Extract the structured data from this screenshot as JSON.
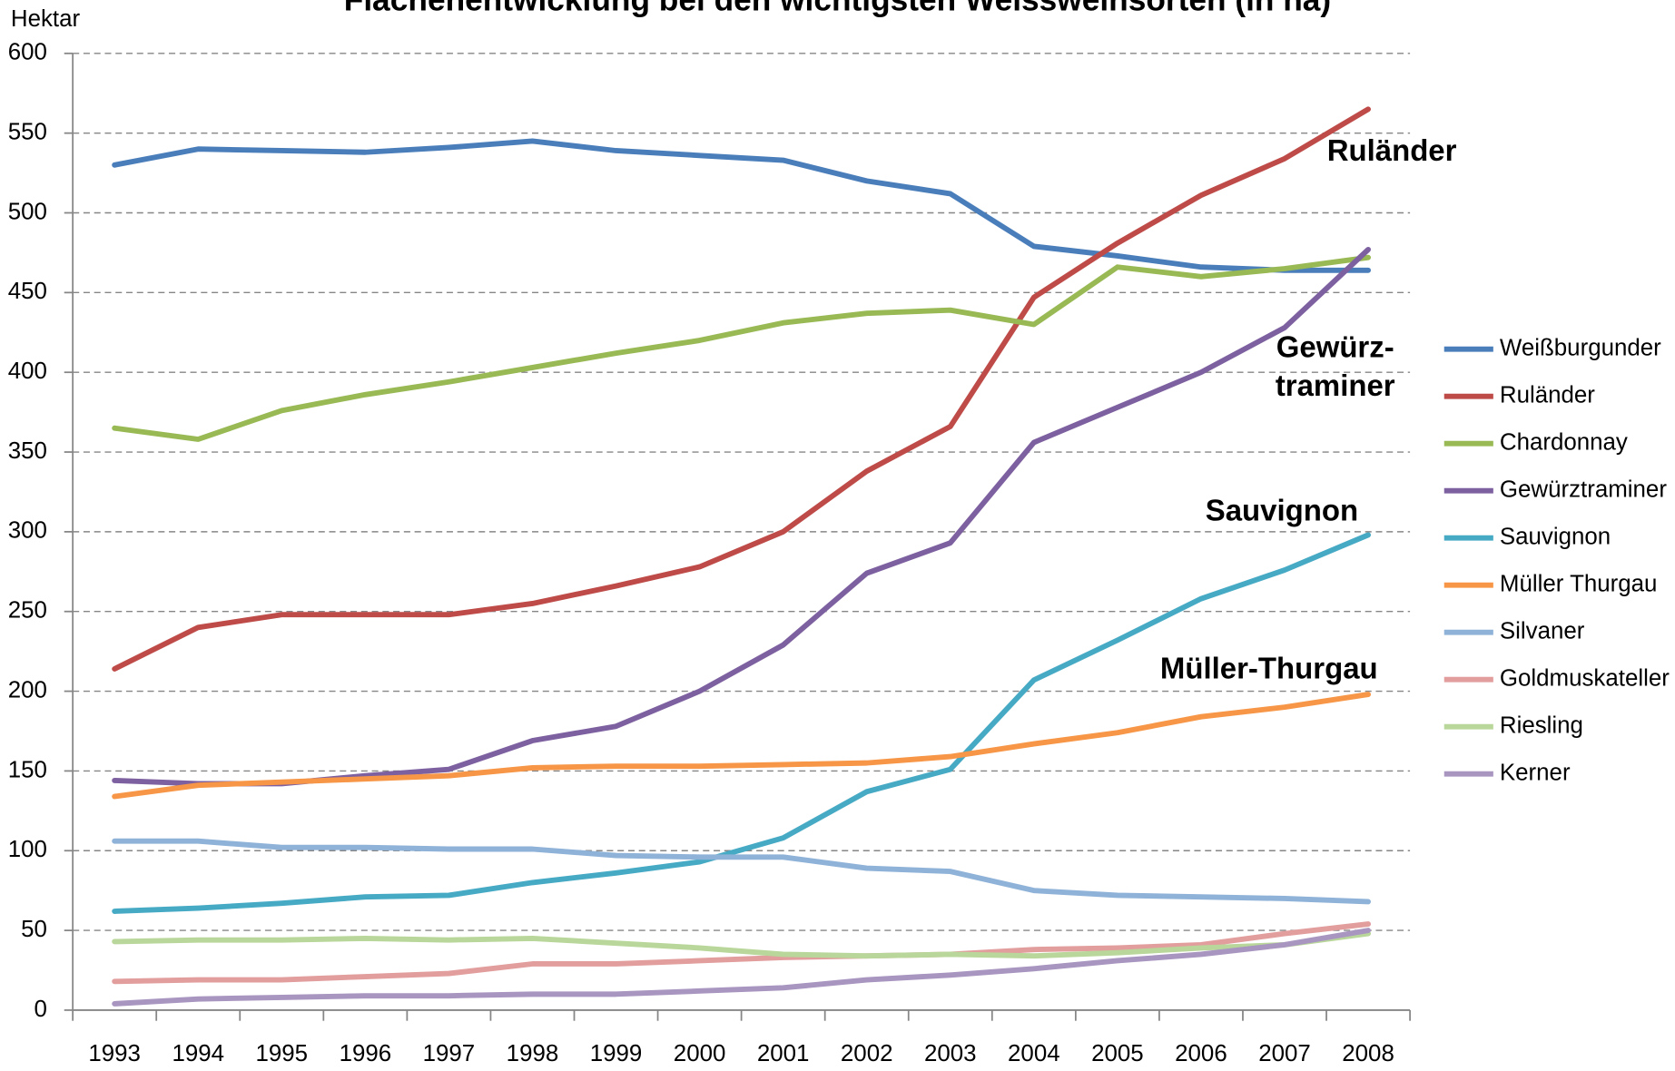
{
  "chart_data": {
    "type": "line",
    "title": "Flächenentwicklung bei den wichtigsten Weissweinsorten (in ha)",
    "y_label": "Hektar",
    "categories": [
      "1993",
      "1994",
      "1995",
      "1996",
      "1997",
      "1998",
      "1999",
      "2000",
      "2001",
      "2002",
      "2003",
      "2004",
      "2005",
      "2006",
      "2007",
      "2008"
    ],
    "ylim": [
      0,
      600
    ],
    "yticks": [
      0,
      50,
      100,
      150,
      200,
      250,
      300,
      350,
      400,
      450,
      500,
      550,
      600
    ],
    "grid": true,
    "legend": "right",
    "annotations": [
      "Ruländer",
      "Gewürz-",
      "traminer",
      "Sauvignon",
      "Müller-Thurgau"
    ],
    "series": [
      {
        "name": "Weißburgunder",
        "color": "#4a7ebb",
        "values": [
          530,
          540,
          539,
          538,
          541,
          545,
          539,
          536,
          533,
          520,
          512,
          479,
          473,
          466,
          464,
          464
        ]
      },
      {
        "name": "Ruländer",
        "color": "#be4b48",
        "values": [
          214,
          240,
          248,
          248,
          248,
          255,
          266,
          278,
          300,
          338,
          366,
          447,
          481,
          511,
          534,
          565
        ]
      },
      {
        "name": "Chardonnay",
        "color": "#98b954",
        "values": [
          365,
          358,
          376,
          386,
          394,
          403,
          412,
          420,
          431,
          437,
          439,
          430,
          466,
          460,
          465,
          472
        ]
      },
      {
        "name": "Gewürztraminer",
        "color": "#7d60a0",
        "values": [
          144,
          142,
          142,
          147,
          151,
          169,
          178,
          200,
          229,
          274,
          293,
          356,
          378,
          400,
          428,
          477
        ]
      },
      {
        "name": "Sauvignon",
        "color": "#46aac5",
        "values": [
          62,
          64,
          67,
          71,
          72,
          80,
          86,
          93,
          108,
          137,
          151,
          207,
          232,
          258,
          276,
          298
        ]
      },
      {
        "name": "Müller Thurgau",
        "color": "#f79646",
        "values": [
          134,
          141,
          143,
          145,
          147,
          152,
          153,
          153,
          154,
          155,
          159,
          167,
          174,
          184,
          190,
          198
        ]
      },
      {
        "name": "Silvaner",
        "color": "#8fb2d8",
        "values": [
          106,
          106,
          102,
          102,
          101,
          101,
          97,
          96,
          96,
          89,
          87,
          75,
          72,
          71,
          70,
          68
        ]
      },
      {
        "name": "Goldmuskateller",
        "color": "#e29d9d",
        "values": [
          18,
          19,
          19,
          21,
          23,
          29,
          29,
          31,
          33,
          34,
          35,
          38,
          39,
          41,
          48,
          54
        ]
      },
      {
        "name": "Riesling",
        "color": "#b9d79a",
        "values": [
          43,
          44,
          44,
          45,
          44,
          45,
          42,
          39,
          35,
          34,
          35,
          34,
          36,
          39,
          41,
          48
        ]
      },
      {
        "name": "Kerner",
        "color": "#a895c0",
        "values": [
          4,
          7,
          8,
          9,
          9,
          10,
          10,
          12,
          14,
          19,
          22,
          26,
          31,
          35,
          41,
          50
        ]
      }
    ]
  }
}
